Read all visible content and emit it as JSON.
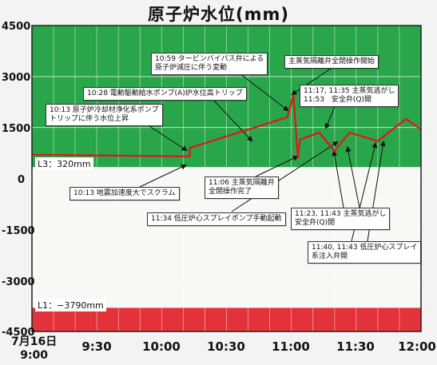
{
  "chart_data": {
    "type": "line",
    "title": "原子炉水位(mm)",
    "ylim": [
      -4500,
      4500
    ],
    "y_ticks": [
      "4500",
      "3000",
      "1500",
      "0",
      "-1500",
      "-3000",
      "-4500"
    ],
    "x_ticks": [
      {
        "label": "7月16日",
        "sub": "9:00"
      },
      {
        "label": "9:30"
      },
      {
        "label": "10:00"
      },
      {
        "label": "10:30"
      },
      {
        "label": "11:00"
      },
      {
        "label": "11:30"
      },
      {
        "label": "12:00"
      }
    ],
    "xlim": [
      "9:00",
      "12:00"
    ],
    "grid": true,
    "colors": {
      "upper_band": "#29a64a",
      "middle_band": "#f7f9f4",
      "lower_band": "#e3323a",
      "line": "#e0161a"
    },
    "level_lines": [
      {
        "label": "L3：320mm",
        "y": 320
      },
      {
        "label": "L1：−3790mm",
        "y": -3790
      }
    ],
    "series": [
      {
        "x": [
          "9:00",
          "10:13",
          "10:13",
          "10:58",
          "11:01",
          "11:03",
          "11:04",
          "11:13",
          "11:20",
          "11:21",
          "11:27",
          "11:40",
          "11:45",
          "11:53",
          "12:00"
        ],
        "y": [
          700,
          650,
          900,
          1800,
          2450,
          600,
          1150,
          1350,
          800,
          900,
          1350,
          1100,
          1350,
          1750,
          1450
        ]
      }
    ],
    "annotations": [
      {
        "id": "a1",
        "lines": [
          "10:59 タービンバイパス弁による",
          "原子炉減圧に伴う変動"
        ]
      },
      {
        "id": "a2",
        "lines": [
          "主蒸気隔離弁全閉操作開始"
        ]
      },
      {
        "id": "a3",
        "lines": [
          "10:28 電動駆動給水ポンプ(A)炉水位高トリップ"
        ]
      },
      {
        "id": "a4",
        "lines": [
          "11:17, 11:35 主蒸気逃がし",
          "11:53　安全弁(Q)開"
        ]
      },
      {
        "id": "a5",
        "lines": [
          "10:13 原子炉冷却材浄化系ポンプ",
          "トリップに伴う水位上昇"
        ]
      },
      {
        "id": "a6",
        "lines": [
          "11:06 主蒸気隔離弁",
          "全閉操作完了"
        ]
      },
      {
        "id": "a7",
        "lines": [
          "10:13 地震加速度大でスクラム"
        ]
      },
      {
        "id": "a8",
        "lines": [
          "11:34 低圧炉心スプレイポンプ手動起動"
        ]
      },
      {
        "id": "a9",
        "lines": [
          "11:23, 11:43 主蒸気逃がし",
          "安全弁(Q)閉"
        ]
      },
      {
        "id": "a10",
        "lines": [
          "11:40, 11:43 低圧炉心スプレイ",
          "系注入弁開"
        ]
      }
    ]
  }
}
